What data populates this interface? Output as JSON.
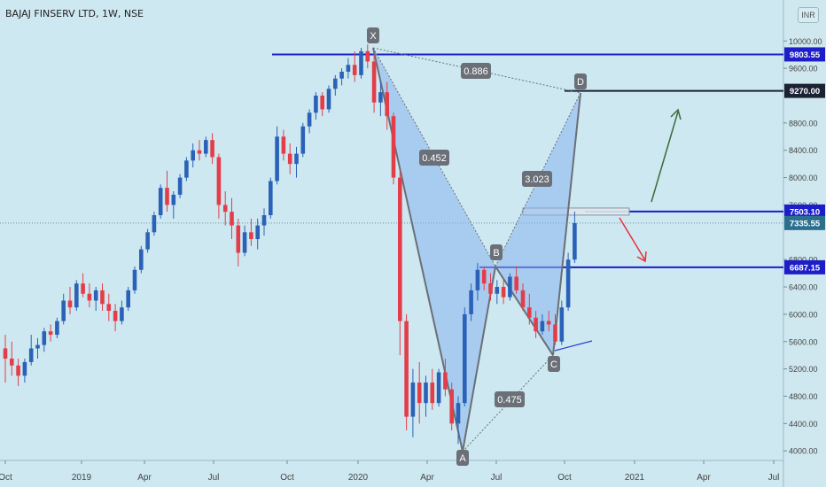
{
  "header": {
    "title": "BAJAJ FINSERV LTD, 1W, NSE",
    "currency_badge": "INR"
  },
  "chart_data": {
    "type": "candlestick",
    "x_ticks": [
      "Oct",
      "2019",
      "Apr",
      "Jul",
      "Oct",
      "2020",
      "Apr",
      "Jul",
      "Oct",
      "2021",
      "Apr",
      "Jul"
    ],
    "y_ticks": [
      "10000.00",
      "9600.00",
      "8800.00",
      "8400.00",
      "8000.00",
      "7600.00",
      "6800.00",
      "6400.00",
      "6000.00",
      "5600.00",
      "5200.00",
      "4800.00",
      "4400.00",
      "4000.00"
    ],
    "ylim": [
      3860,
      10600
    ],
    "price_labels": [
      {
        "value": 9803.55,
        "label": "9803.55",
        "color": "#1e1ec8"
      },
      {
        "value": 9270,
        "label": "9270.00",
        "color": "#1a2233"
      },
      {
        "value": 7503.1,
        "label": "7503.10",
        "color": "#1e1ec8"
      },
      {
        "value": 7335.55,
        "label": "7335.55",
        "color": "#2a6f8e"
      },
      {
        "value": 6687.15,
        "label": "6687.15",
        "color": "#1e1ec8"
      }
    ],
    "horizontal_levels": [
      {
        "value": 9803.55,
        "color": "#1e1ec8"
      },
      {
        "value": 9270,
        "color": "#1a2233"
      },
      {
        "value": 7503.1,
        "color": "#1e1ec8"
      },
      {
        "value": 6687.15,
        "color": "#1e1ec8"
      }
    ],
    "pattern_points": [
      {
        "name": "X",
        "value": 9900
      },
      {
        "name": "A",
        "value": 3990
      },
      {
        "name": "B",
        "value": 6700
      },
      {
        "name": "C",
        "value": 5400
      },
      {
        "name": "D",
        "value": 9240
      }
    ],
    "ratio_labels": [
      "0.886",
      "0.452",
      "3.023",
      "0.475"
    ],
    "candles": [
      [
        5500,
        5700,
        5000,
        5350
      ],
      [
        5350,
        5600,
        5100,
        5250
      ],
      [
        5250,
        5350,
        4950,
        5100
      ],
      [
        5100,
        5350,
        5000,
        5300
      ],
      [
        5300,
        5700,
        5250,
        5500
      ],
      [
        5500,
        5650,
        5350,
        5550
      ],
      [
        5550,
        5800,
        5450,
        5750
      ],
      [
        5750,
        5850,
        5600,
        5700
      ],
      [
        5700,
        5950,
        5650,
        5900
      ],
      [
        5900,
        6300,
        5850,
        6200
      ],
      [
        6200,
        6400,
        6000,
        6100
      ],
      [
        6100,
        6500,
        6050,
        6450
      ],
      [
        6450,
        6600,
        6250,
        6300
      ],
      [
        6300,
        6450,
        6100,
        6200
      ],
      [
        6200,
        6400,
        6050,
        6350
      ],
      [
        6350,
        6450,
        6050,
        6150
      ],
      [
        6150,
        6300,
        5900,
        6050
      ],
      [
        6050,
        6150,
        5750,
        5900
      ],
      [
        5900,
        6200,
        5850,
        6100
      ],
      [
        6100,
        6400,
        6050,
        6350
      ],
      [
        6350,
        6700,
        6300,
        6650
      ],
      [
        6650,
        7000,
        6600,
        6950
      ],
      [
        6950,
        7250,
        6900,
        7200
      ],
      [
        7200,
        7500,
        7150,
        7450
      ],
      [
        7450,
        7900,
        7400,
        7850
      ],
      [
        7850,
        8100,
        7500,
        7600
      ],
      [
        7600,
        7800,
        7400,
        7750
      ],
      [
        7750,
        8050,
        7700,
        8000
      ],
      [
        8000,
        8300,
        7950,
        8250
      ],
      [
        8250,
        8500,
        8150,
        8400
      ],
      [
        8400,
        8550,
        8250,
        8350
      ],
      [
        8350,
        8600,
        8300,
        8550
      ],
      [
        8550,
        8650,
        8200,
        8300
      ],
      [
        8300,
        8350,
        7400,
        7600
      ],
      [
        7600,
        7800,
        7300,
        7500
      ],
      [
        7500,
        7700,
        7100,
        7300
      ],
      [
        7300,
        7400,
        6700,
        6900
      ],
      [
        6900,
        7300,
        6850,
        7200
      ],
      [
        7200,
        7400,
        7000,
        7100
      ],
      [
        7100,
        7400,
        6950,
        7300
      ],
      [
        7300,
        7550,
        7150,
        7450
      ],
      [
        7450,
        8000,
        7400,
        7950
      ],
      [
        7950,
        8750,
        7900,
        8600
      ],
      [
        8600,
        8700,
        8250,
        8350
      ],
      [
        8350,
        8500,
        8050,
        8200
      ],
      [
        8200,
        8450,
        8000,
        8350
      ],
      [
        8350,
        8800,
        8300,
        8750
      ],
      [
        8750,
        9000,
        8650,
        8950
      ],
      [
        8950,
        9250,
        8850,
        9200
      ],
      [
        9200,
        9250,
        8900,
        9000
      ],
      [
        9000,
        9350,
        8950,
        9300
      ],
      [
        9300,
        9500,
        9200,
        9450
      ],
      [
        9450,
        9600,
        9350,
        9550
      ],
      [
        9550,
        9750,
        9450,
        9650
      ],
      [
        9650,
        9850,
        9400,
        9500
      ],
      [
        9500,
        9900,
        9450,
        9850
      ],
      [
        9850,
        9950,
        9600,
        9700
      ],
      [
        9700,
        9800,
        8950,
        9100
      ],
      [
        9100,
        9400,
        8900,
        9250
      ],
      [
        9250,
        9400,
        8700,
        8900
      ],
      [
        8900,
        8950,
        7900,
        8000
      ],
      [
        8000,
        8100,
        5400,
        5900
      ],
      [
        5900,
        6000,
        4300,
        4500
      ],
      [
        4500,
        5200,
        4200,
        5000
      ],
      [
        5000,
        5300,
        4400,
        4700
      ],
      [
        4700,
        5100,
        4500,
        5000
      ],
      [
        5000,
        5200,
        4600,
        4700
      ],
      [
        4700,
        5200,
        4650,
        5150
      ],
      [
        5150,
        5350,
        4800,
        4900
      ],
      [
        4900,
        5000,
        4300,
        4400
      ],
      [
        4400,
        4800,
        4100,
        4700
      ],
      [
        4700,
        6100,
        4650,
        6000
      ],
      [
        6000,
        6450,
        5900,
        6350
      ],
      [
        6350,
        6750,
        6200,
        6650
      ],
      [
        6650,
        6700,
        6350,
        6450
      ],
      [
        6450,
        6600,
        6200,
        6300
      ],
      [
        6300,
        6500,
        6150,
        6400
      ],
      [
        6400,
        6500,
        6150,
        6250
      ],
      [
        6250,
        6600,
        6200,
        6550
      ],
      [
        6550,
        6700,
        6300,
        6350
      ],
      [
        6350,
        6450,
        6050,
        6100
      ],
      [
        6100,
        6300,
        5850,
        5950
      ],
      [
        5950,
        6050,
        5650,
        5750
      ],
      [
        5750,
        6000,
        5700,
        5900
      ],
      [
        5900,
        6050,
        5750,
        5850
      ],
      [
        5850,
        6000,
        5550,
        5600
      ],
      [
        5600,
        6200,
        5550,
        6100
      ],
      [
        6100,
        6900,
        6050,
        6800
      ],
      [
        6800,
        7503,
        6750,
        7335
      ]
    ]
  }
}
